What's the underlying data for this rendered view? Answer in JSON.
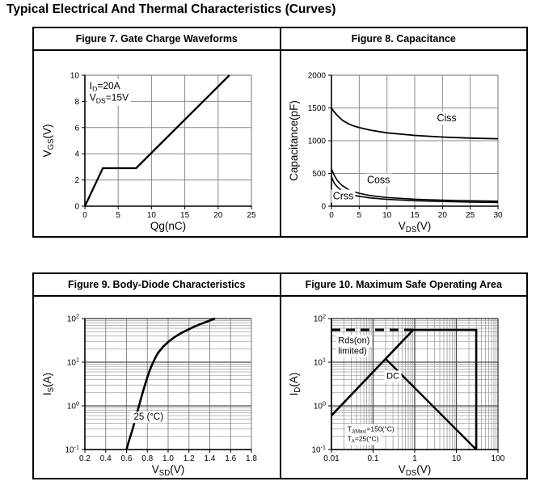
{
  "page": {
    "title": "Typical Electrical And Thermal Characteristics (Curves)"
  },
  "colors": {
    "background": "#ffffff",
    "text": "#000000",
    "border": "#000000",
    "grid_major": "#8a8a8a",
    "grid_log_major": "#4a4a4a",
    "grid_minor": "#9f9f9f",
    "curve": "#000000"
  },
  "chart_data": [
    {
      "type": "line",
      "figure_title": "Figure 7. Gate Charge Waveforms",
      "x": {
        "scale": "linear",
        "min": 0,
        "max": 25,
        "tick_values": [
          0,
          5,
          10,
          15,
          20,
          25
        ],
        "tick_labels": [
          "0",
          "5",
          "10",
          "15",
          "20",
          "25"
        ],
        "label": [
          {
            "t": "Qg(nC)"
          }
        ]
      },
      "y": {
        "scale": "linear",
        "min": 0,
        "max": 10,
        "tick_values": [
          0,
          2,
          4,
          6,
          8,
          10
        ],
        "tick_labels": [
          "0",
          "2",
          "4",
          "6",
          "8",
          "10"
        ],
        "label": [
          {
            "t": "V"
          },
          {
            "t": "GS",
            "sub": true
          },
          {
            "t": "(V)"
          }
        ]
      },
      "series": [
        {
          "name": "VGS gate charge",
          "width": 2.3,
          "points": [
            [
              0,
              0
            ],
            [
              2.7,
              2.9
            ],
            [
              7.7,
              2.9
            ],
            [
              21.7,
              10
            ]
          ]
        }
      ],
      "annotations": [
        {
          "x": 0.7,
          "y": 8.95,
          "size": 12,
          "bg": true,
          "parts": [
            {
              "t": "I"
            },
            {
              "t": "D",
              "sub": true
            },
            {
              "t": "=20A"
            }
          ]
        },
        {
          "x": 0.7,
          "y": 8.05,
          "size": 12,
          "bg": true,
          "parts": [
            {
              "t": "V"
            },
            {
              "t": "DS",
              "sub": true
            },
            {
              "t": "=15V"
            }
          ]
        }
      ]
    },
    {
      "type": "line",
      "figure_title": "Figure 8. Capacitance",
      "x": {
        "scale": "linear",
        "min": 0,
        "max": 30,
        "tick_values": [
          0,
          5,
          10,
          15,
          20,
          25,
          30
        ],
        "tick_labels": [
          "0",
          "5",
          "10",
          "15",
          "20",
          "25",
          "30"
        ],
        "label": [
          {
            "t": "V"
          },
          {
            "t": "DS",
            "sub": true
          },
          {
            "t": "(V)"
          }
        ]
      },
      "y": {
        "scale": "linear",
        "min": 0,
        "max": 2000,
        "tick_values": [
          0,
          500,
          1000,
          1500,
          2000
        ],
        "tick_labels": [
          "0",
          "500",
          "1000",
          "1500",
          "2000"
        ],
        "label": [
          {
            "t": "Capacitance(pF)"
          }
        ]
      },
      "series": [
        {
          "name": "Ciss",
          "width": 1.8,
          "points": [
            [
              0,
              1500
            ],
            [
              0.5,
              1440
            ],
            [
              1,
              1390
            ],
            [
              2,
              1310
            ],
            [
              3,
              1260
            ],
            [
              4,
              1225
            ],
            [
              5,
              1200
            ],
            [
              7,
              1160
            ],
            [
              10,
              1120
            ],
            [
              15,
              1080
            ],
            [
              20,
              1055
            ],
            [
              25,
              1040
            ],
            [
              30,
              1030
            ]
          ]
        },
        {
          "name": "Coss",
          "width": 1.6,
          "points": [
            [
              0,
              570
            ],
            [
              0.5,
              470
            ],
            [
              1,
              400
            ],
            [
              1.5,
              350
            ],
            [
              2,
              312
            ],
            [
              3,
              256
            ],
            [
              4,
              222
            ],
            [
              5,
              196
            ],
            [
              7,
              162
            ],
            [
              10,
              132
            ],
            [
              15,
              106
            ],
            [
              20,
              92
            ],
            [
              25,
              83
            ],
            [
              30,
              76
            ]
          ]
        },
        {
          "name": "Crss",
          "width": 1.6,
          "points": [
            [
              0,
              450
            ],
            [
              0.5,
              352
            ],
            [
              1,
              300
            ],
            [
              1.5,
              262
            ],
            [
              2,
              233
            ],
            [
              3,
              193
            ],
            [
              4,
              168
            ],
            [
              5,
              150
            ],
            [
              7,
              126
            ],
            [
              10,
              104
            ],
            [
              15,
              83
            ],
            [
              20,
              71
            ],
            [
              25,
              63
            ],
            [
              30,
              57
            ]
          ]
        }
      ],
      "annotations": [
        {
          "x": 19,
          "y": 1295,
          "size": 12.5,
          "bg": true,
          "parts": [
            {
              "t": "Ciss"
            }
          ]
        },
        {
          "x": 6.4,
          "y": 350,
          "size": 12.5,
          "bg": true,
          "parts": [
            {
              "t": "Coss"
            }
          ]
        },
        {
          "x": 0.25,
          "y": 105,
          "size": 12.5,
          "bg": true,
          "pad": 2,
          "parts": [
            {
              "t": "Crss"
            }
          ]
        }
      ]
    },
    {
      "type": "line",
      "figure_title": "Figure 9. Body-Diode Characteristics",
      "x": {
        "scale": "linear",
        "min": 0.2,
        "max": 1.8,
        "tick_values": [
          0.2,
          0.4,
          0.6,
          0.8,
          1,
          1.2,
          1.4,
          1.6,
          1.8
        ],
        "tick_labels": [
          "0.2",
          "0.4",
          "0.6",
          "0.8",
          "1.0",
          "1.2",
          "1.4",
          "1.6",
          "1.8"
        ],
        "label": [
          {
            "t": "V"
          },
          {
            "t": "SD",
            "sub": true
          },
          {
            "t": "(V)"
          }
        ]
      },
      "y": {
        "scale": "log",
        "min": 0.1,
        "max": 100,
        "tick_values": [
          0.1,
          1,
          10,
          100
        ],
        "tick_labels": [
          [
            {
              "t": "10"
            },
            {
              "t": "-1",
              "sup": true
            }
          ],
          [
            {
              "t": "10"
            },
            {
              "t": "0",
              "sup": true
            }
          ],
          [
            {
              "t": "10"
            },
            {
              "t": "1",
              "sup": true
            }
          ],
          [
            {
              "t": "10"
            },
            {
              "t": "2",
              "sup": true
            }
          ]
        ],
        "label": [
          {
            "t": "I"
          },
          {
            "t": "S",
            "sub": true
          },
          {
            "t": "(A)"
          }
        ]
      },
      "series": [
        {
          "name": "IS body diode 25C",
          "width": 2.6,
          "points": [
            [
              0.6,
              0.1
            ],
            [
              0.62,
              0.15
            ],
            [
              0.64,
              0.21
            ],
            [
              0.66,
              0.3
            ],
            [
              0.68,
              0.45
            ],
            [
              0.7,
              0.68
            ],
            [
              0.72,
              1.0
            ],
            [
              0.74,
              1.5
            ],
            [
              0.76,
              2.2
            ],
            [
              0.78,
              3.2
            ],
            [
              0.8,
              4.5
            ],
            [
              0.82,
              6.2
            ],
            [
              0.84,
              8.2
            ],
            [
              0.86,
              10.5
            ],
            [
              0.88,
              13
            ],
            [
              0.9,
              16
            ],
            [
              0.95,
              22.5
            ],
            [
              1.0,
              29
            ],
            [
              1.05,
              36
            ],
            [
              1.1,
              43
            ],
            [
              1.15,
              50
            ],
            [
              1.2,
              57
            ],
            [
              1.25,
              65
            ],
            [
              1.3,
              73
            ],
            [
              1.35,
              81
            ],
            [
              1.4,
              90
            ],
            [
              1.45,
              100
            ]
          ]
        }
      ],
      "annotations": [
        {
          "x": 0.67,
          "y": 0.48,
          "size": 11.5,
          "bg": true,
          "pad": 5,
          "parts": [
            {
              "t": "25 (°C)"
            }
          ]
        }
      ]
    },
    {
      "type": "line",
      "figure_title": "Figure 10. Maximum Safe Operating Area",
      "x": {
        "scale": "log",
        "min": 0.01,
        "max": 100,
        "tick_values": [
          0.01,
          0.1,
          1,
          10,
          100
        ],
        "tick_labels": [
          "0.01",
          "0.1",
          "1",
          "10",
          "100"
        ],
        "label": [
          {
            "t": "V"
          },
          {
            "t": "DS",
            "sub": true
          },
          {
            "t": "(V)"
          }
        ]
      },
      "y": {
        "scale": "log",
        "min": 0.1,
        "max": 100,
        "tick_values": [
          0.1,
          1,
          10,
          100
        ],
        "tick_labels": [
          [
            {
              "t": "10"
            },
            {
              "t": "-1",
              "sup": true
            }
          ],
          [
            {
              "t": "10"
            },
            {
              "t": "0",
              "sup": true
            }
          ],
          [
            {
              "t": "10"
            },
            {
              "t": "1",
              "sup": true
            }
          ],
          [
            {
              "t": "10"
            },
            {
              "t": "2",
              "sup": true
            }
          ]
        ],
        "label": [
          {
            "t": "I"
          },
          {
            "t": "D",
            "sub": true
          },
          {
            "t": "(A)"
          }
        ]
      },
      "series": [
        {
          "name": "Rds(on) limit dashed",
          "width": 3,
          "dash": "11,7",
          "points": [
            [
              0.01,
              55
            ],
            [
              0.9,
              55
            ]
          ]
        },
        {
          "name": "SOA boundary",
          "width": 2.6,
          "points": [
            [
              0.01,
              0.6
            ],
            [
              0.92,
              55
            ],
            [
              30,
              55
            ],
            [
              30,
              0.1
            ]
          ]
        },
        {
          "name": "DC",
          "width": 2.4,
          "points": [
            [
              0.2,
              12
            ],
            [
              30,
              0.1
            ]
          ]
        }
      ],
      "annotations": [
        {
          "x": 0.0145,
          "y": 27,
          "size": 11,
          "bg": true,
          "parts": [
            {
              "t": "Rds(on)"
            }
          ]
        },
        {
          "x": 0.0145,
          "y": 15.5,
          "size": 11,
          "bg": true,
          "parts": [
            {
              "t": "limited)"
            }
          ]
        },
        {
          "x": 0.21,
          "y": 4.2,
          "size": 11,
          "bg": true,
          "parts": [
            {
              "t": "DC"
            }
          ]
        },
        {
          "x": 0.024,
          "y": 0.26,
          "size": 8.5,
          "bg": true,
          "parts": [
            {
              "t": "T"
            },
            {
              "t": "J(Max)",
              "sub": true
            },
            {
              "t": "=150(°C)"
            }
          ]
        },
        {
          "x": 0.024,
          "y": 0.158,
          "size": 8.5,
          "bg": true,
          "parts": [
            {
              "t": "T"
            },
            {
              "t": "A",
              "sub": true
            },
            {
              "t": "=25(°C)"
            }
          ]
        }
      ]
    }
  ]
}
